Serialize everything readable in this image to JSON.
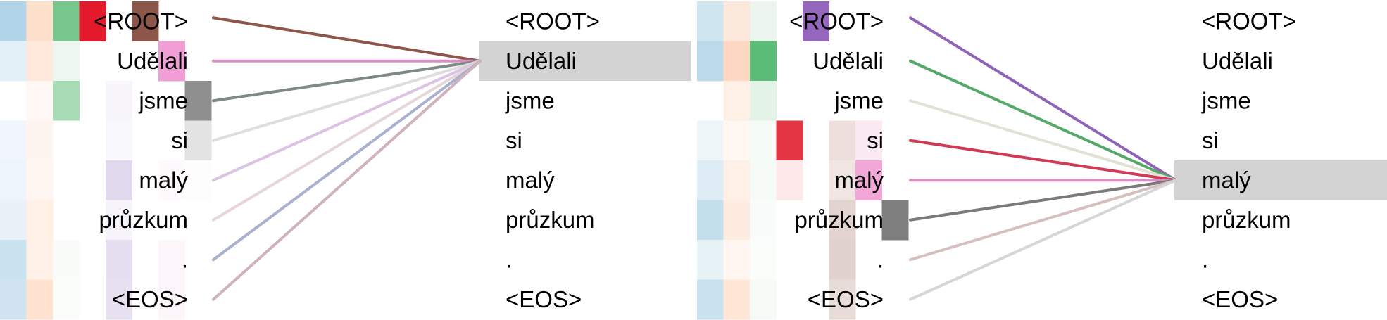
{
  "tokens": [
    "<ROOT>",
    "Udělali",
    "jsme",
    "si",
    "malý",
    "průzkum",
    ".",
    "<EOS>"
  ],
  "panels": [
    {
      "focus_index": 1,
      "heatmap": [
        [
          [
            "#b2d4e8",
            1
          ],
          [
            "#fde0cc",
            1
          ],
          [
            "#78c78f",
            1
          ],
          [
            "#e31a2c",
            1
          ],
          [
            "#ffffff",
            0
          ],
          [
            "#8c564b",
            1
          ],
          [
            "#ffffff",
            0
          ],
          [
            "#ffffff",
            0
          ]
        ],
        [
          [
            "#e3f0f7",
            1
          ],
          [
            "#ffe9dc",
            1
          ],
          [
            "#eef7ef",
            1
          ],
          [
            "#ffffff",
            0
          ],
          [
            "#ffffff",
            0
          ],
          [
            "#ffffff",
            0
          ],
          [
            "#f29ed6",
            1
          ],
          [
            "#ffffff",
            0
          ]
        ],
        [
          [
            "#ffffff",
            0
          ],
          [
            "#fff8f4",
            1
          ],
          [
            "#a8dcb6",
            1
          ],
          [
            "#ffffff",
            0
          ],
          [
            "#f8f6fb",
            1
          ],
          [
            "#ffffff",
            0
          ],
          [
            "#ffffff",
            0
          ],
          [
            "#8f8f8f",
            1
          ]
        ],
        [
          [
            "#f0f6fb",
            1
          ],
          [
            "#fff5ef",
            1
          ],
          [
            "#fdfefd",
            1
          ],
          [
            "#ffffff",
            0
          ],
          [
            "#f9f8fc",
            1
          ],
          [
            "#ffffff",
            0
          ],
          [
            "#ffffff",
            0
          ],
          [
            "#e3e3e3",
            1
          ]
        ],
        [
          [
            "#eef5fa",
            1
          ],
          [
            "#fff6f1",
            1
          ],
          [
            "#ffffff",
            0
          ],
          [
            "#ffffff",
            0
          ],
          [
            "#e0d9ed",
            1
          ],
          [
            "#ffffff",
            0
          ],
          [
            "#fef9fc",
            1
          ],
          [
            "#fdfdfd",
            1
          ]
        ],
        [
          [
            "#e8f2f8",
            1
          ],
          [
            "#ffefe5",
            1
          ],
          [
            "#ffffff",
            0
          ],
          [
            "#ffffff",
            0
          ],
          [
            "#f6f4fa",
            1
          ],
          [
            "#ffffff",
            0
          ],
          [
            "#ffffff",
            0
          ],
          [
            "#ffffff",
            0
          ]
        ],
        [
          [
            "#c9e2ef",
            1
          ],
          [
            "#fff1e8",
            1
          ],
          [
            "#f9fcf9",
            1
          ],
          [
            "#ffffff",
            0
          ],
          [
            "#e4def0",
            1
          ],
          [
            "#ffffff",
            0
          ],
          [
            "#fdf7fb",
            1
          ],
          [
            "#ffffff",
            0
          ]
        ],
        [
          [
            "#cfe4f0",
            1
          ],
          [
            "#ffe2cf",
            1
          ],
          [
            "#fbfdfb",
            1
          ],
          [
            "#ffffff",
            0
          ],
          [
            "#e6e0f0",
            1
          ],
          [
            "#ffffff",
            0
          ],
          [
            "#fdf6fa",
            1
          ],
          [
            "#ffffff",
            0
          ]
        ]
      ],
      "links": [
        "#8c564b",
        "#d98fc4",
        "#7f8a86",
        "#dedede",
        "#dcc3e3",
        "#e6d6da",
        "#aab0cf",
        "#cfb2bb"
      ]
    },
    {
      "focus_index": 4,
      "heatmap": [
        [
          [
            "#cfe5ef",
            1
          ],
          [
            "#fde8dc",
            1
          ],
          [
            "#ecf6ee",
            1
          ],
          [
            "#ffffff",
            0
          ],
          [
            "#9467bd",
            1
          ],
          [
            "#ffffff",
            0
          ],
          [
            "#ffffff",
            0
          ],
          [
            "#ffffff",
            0
          ]
        ],
        [
          [
            "#bcdbea",
            1
          ],
          [
            "#ffd8c3",
            1
          ],
          [
            "#5bbd78",
            1
          ],
          [
            "#ffffff",
            0
          ],
          [
            "#ffffff",
            0
          ],
          [
            "#ffffff",
            0
          ],
          [
            "#ffffff",
            0
          ],
          [
            "#ffffff",
            0
          ]
        ],
        [
          [
            "#ffffff",
            0
          ],
          [
            "#fff0e6",
            1
          ],
          [
            "#e3f3e7",
            1
          ],
          [
            "#ffffff",
            0
          ],
          [
            "#ffffff",
            0
          ],
          [
            "#ffffff",
            0
          ],
          [
            "#ffffff",
            0
          ],
          [
            "#ffffff",
            0
          ]
        ],
        [
          [
            "#edf5f9",
            1
          ],
          [
            "#fff7f2",
            1
          ],
          [
            "#f5fbf6",
            1
          ],
          [
            "#e33645",
            1
          ],
          [
            "#ffffff",
            0
          ],
          [
            "#ede0dc",
            1
          ],
          [
            "#fbeaf4",
            1
          ],
          [
            "#ffffff",
            0
          ]
        ],
        [
          [
            "#deedf5",
            1
          ],
          [
            "#fff0e7",
            1
          ],
          [
            "#f7fbf8",
            1
          ],
          [
            "#fde8ea",
            1
          ],
          [
            "#ffffff",
            0
          ],
          [
            "#f0e5e2",
            1
          ],
          [
            "#f3a8d9",
            1
          ],
          [
            "#ffffff",
            0
          ]
        ],
        [
          [
            "#c4dfec",
            1
          ],
          [
            "#ffece0",
            1
          ],
          [
            "#f9fcfa",
            1
          ],
          [
            "#ffffff",
            0
          ],
          [
            "#ffffff",
            0
          ],
          [
            "#e4d4cf",
            1
          ],
          [
            "#ffffff",
            0
          ],
          [
            "#7f7f7f",
            1
          ]
        ],
        [
          [
            "#e8f3f8",
            1
          ],
          [
            "#fff6f1",
            1
          ],
          [
            "#fbfdfb",
            1
          ],
          [
            "#ffffff",
            0
          ],
          [
            "#ffffff",
            0
          ],
          [
            "#e2d2cd",
            1
          ],
          [
            "#ffffff",
            0
          ],
          [
            "#ffffff",
            0
          ]
        ],
        [
          [
            "#cae2ee",
            1
          ],
          [
            "#ffe7d8",
            1
          ],
          [
            "#f6fbf7",
            1
          ],
          [
            "#ffffff",
            0
          ],
          [
            "#ffffff",
            0
          ],
          [
            "#e8dcd8",
            1
          ],
          [
            "#ffffff",
            0
          ],
          [
            "#ffffff",
            0
          ]
        ]
      ],
      "links": [
        "#8f63b8",
        "#55a868",
        "#dfe2d4",
        "#d13a55",
        "#d98fc4",
        "#7a7a7a",
        "#d6c0bf",
        "#d6d6d6"
      ]
    }
  ]
}
